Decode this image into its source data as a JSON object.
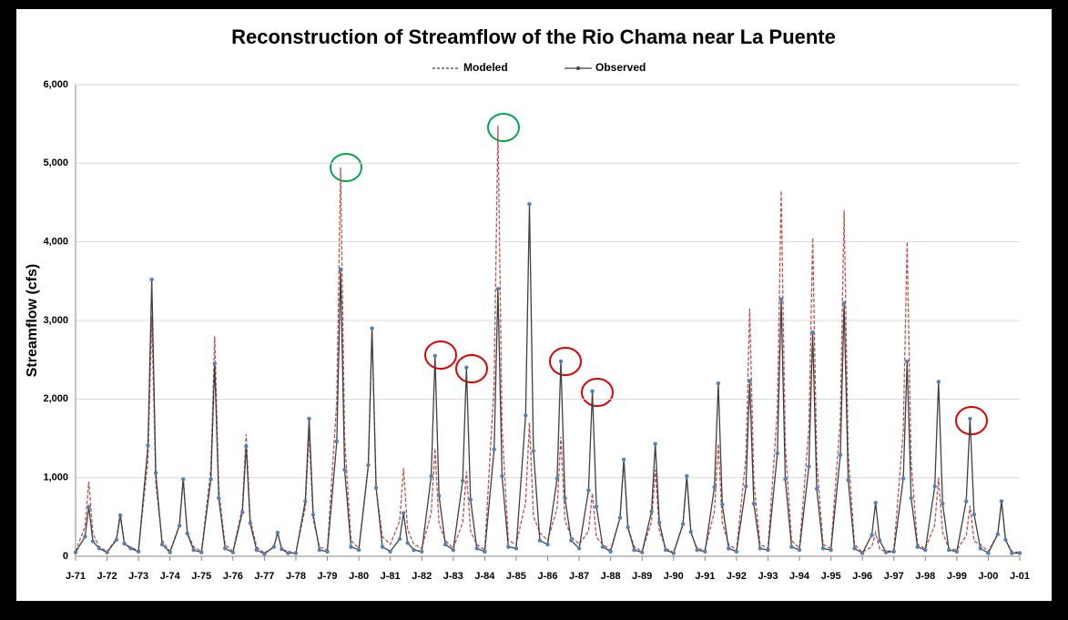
{
  "chart_data": {
    "type": "line",
    "title": "Reconstruction of Streamflow of the Rio Chama near La Puente",
    "ylabel": "Streamflow (cfs)",
    "x": [
      1971,
      1971.3,
      1971.42,
      1971.55,
      1971.75,
      1972,
      1972.3,
      1972.42,
      1972.55,
      1972.75,
      1973,
      1973.3,
      1973.42,
      1973.55,
      1973.75,
      1974,
      1974.3,
      1974.42,
      1974.55,
      1974.75,
      1975,
      1975.3,
      1975.42,
      1975.55,
      1975.75,
      1976,
      1976.3,
      1976.42,
      1976.55,
      1976.75,
      1977,
      1977.3,
      1977.42,
      1977.55,
      1977.75,
      1978,
      1978.3,
      1978.42,
      1978.55,
      1978.75,
      1979,
      1979.3,
      1979.42,
      1979.55,
      1979.75,
      1980,
      1980.3,
      1980.42,
      1980.55,
      1980.75,
      1981,
      1981.3,
      1981.42,
      1981.55,
      1981.75,
      1982,
      1982.3,
      1982.42,
      1982.55,
      1982.75,
      1983,
      1983.3,
      1983.42,
      1983.55,
      1983.75,
      1984,
      1984.3,
      1984.42,
      1984.55,
      1984.75,
      1985,
      1985.3,
      1985.42,
      1985.55,
      1985.75,
      1986,
      1986.3,
      1986.42,
      1986.55,
      1986.75,
      1987,
      1987.3,
      1987.42,
      1987.55,
      1987.75,
      1988,
      1988.3,
      1988.42,
      1988.55,
      1988.75,
      1989,
      1989.3,
      1989.42,
      1989.55,
      1989.75,
      1990,
      1990.3,
      1990.42,
      1990.55,
      1990.75,
      1991,
      1991.3,
      1991.42,
      1991.55,
      1991.75,
      1992,
      1992.3,
      1992.42,
      1992.55,
      1992.75,
      1993,
      1993.3,
      1993.42,
      1993.55,
      1993.75,
      1994,
      1994.3,
      1994.42,
      1994.55,
      1994.75,
      1995,
      1995.3,
      1995.42,
      1995.55,
      1995.75,
      1996,
      1996.3,
      1996.42,
      1996.55,
      1996.75,
      1997,
      1997.3,
      1997.42,
      1997.55,
      1997.75,
      1998,
      1998.3,
      1998.42,
      1998.55,
      1998.75,
      1999,
      1999.3,
      1999.42,
      1999.55,
      1999.75,
      2000,
      2000.3,
      2000.42,
      2000.55,
      2000.75,
      2001
    ],
    "series": [
      {
        "name": "Modeled",
        "color": "#c0504d",
        "dash": true,
        "values": [
          60,
          380,
          950,
          290,
          120,
          60,
          220,
          550,
          170,
          110,
          80,
          1220,
          3050,
          920,
          200,
          60,
          400,
          1000,
          300,
          120,
          60,
          1120,
          2800,
          840,
          150,
          60,
          620,
          1550,
          470,
          120,
          40,
          120,
          300,
          90,
          60,
          50,
          620,
          1550,
          470,
          120,
          80,
          1980,
          4950,
          1490,
          200,
          100,
          1140,
          2850,
          860,
          250,
          150,
          450,
          1120,
          340,
          150,
          100,
          550,
          1370,
          410,
          200,
          100,
          430,
          1080,
          320,
          150,
          80,
          2190,
          5480,
          1640,
          200,
          150,
          680,
          1700,
          510,
          300,
          200,
          610,
          1520,
          460,
          250,
          150,
          320,
          800,
          240,
          150,
          80,
          490,
          1230,
          370,
          120,
          60,
          440,
          1100,
          330,
          100,
          50,
          400,
          1000,
          300,
          100,
          80,
          570,
          1430,
          430,
          150,
          80,
          1260,
          3150,
          950,
          150,
          100,
          1860,
          4650,
          1400,
          200,
          100,
          1620,
          4050,
          1220,
          150,
          100,
          1760,
          4400,
          1320,
          150,
          50,
          120,
          300,
          90,
          60,
          80,
          1600,
          4000,
          1200,
          150,
          100,
          400,
          1000,
          300,
          100,
          80,
          260,
          640,
          190,
          150,
          60,
          280,
          700,
          210,
          60,
          50
        ]
      },
      {
        "name": "Observed",
        "color": "#404040",
        "marker_color": "#4f81bd",
        "dash": false,
        "values": [
          50,
          250,
          630,
          190,
          100,
          50,
          210,
          520,
          160,
          100,
          60,
          1410,
          3520,
          1060,
          150,
          50,
          390,
          980,
          290,
          80,
          50,
          980,
          2450,
          740,
          100,
          50,
          560,
          1400,
          420,
          80,
          30,
          120,
          300,
          90,
          40,
          40,
          700,
          1750,
          530,
          80,
          60,
          1460,
          3650,
          1100,
          120,
          80,
          1160,
          2900,
          870,
          120,
          60,
          220,
          550,
          170,
          80,
          60,
          1020,
          2550,
          770,
          150,
          80,
          960,
          2400,
          720,
          100,
          60,
          1360,
          3400,
          1020,
          120,
          100,
          1790,
          4480,
          1340,
          200,
          150,
          990,
          2480,
          740,
          200,
          100,
          840,
          2100,
          630,
          120,
          60,
          490,
          1230,
          370,
          80,
          50,
          570,
          1430,
          430,
          80,
          40,
          410,
          1020,
          310,
          80,
          60,
          880,
          2200,
          660,
          100,
          60,
          890,
          2230,
          670,
          100,
          80,
          1310,
          3270,
          980,
          120,
          80,
          1140,
          2850,
          860,
          100,
          80,
          1290,
          3220,
          970,
          100,
          40,
          270,
          680,
          200,
          50,
          60,
          990,
          2480,
          740,
          120,
          80,
          890,
          2220,
          670,
          80,
          60,
          700,
          1750,
          530,
          100,
          40,
          280,
          700,
          210,
          40,
          40
        ]
      }
    ],
    "xlim": [
      1971,
      2001
    ],
    "xticks": [
      {
        "value": 1971,
        "label": "J-71"
      },
      {
        "value": 1972,
        "label": "J-72"
      },
      {
        "value": 1973,
        "label": "J-73"
      },
      {
        "value": 1974,
        "label": "J-74"
      },
      {
        "value": 1975,
        "label": "J-75"
      },
      {
        "value": 1976,
        "label": "J-76"
      },
      {
        "value": 1977,
        "label": "J-77"
      },
      {
        "value": 1978,
        "label": "J-78"
      },
      {
        "value": 1979,
        "label": "J-79"
      },
      {
        "value": 1980,
        "label": "J-80"
      },
      {
        "value": 1981,
        "label": "J-81"
      },
      {
        "value": 1982,
        "label": "J-82"
      },
      {
        "value": 1983,
        "label": "J-83"
      },
      {
        "value": 1984,
        "label": "J-84"
      },
      {
        "value": 1985,
        "label": "J-85"
      },
      {
        "value": 1986,
        "label": "J-86"
      },
      {
        "value": 1987,
        "label": "J-87"
      },
      {
        "value": 1988,
        "label": "J-88"
      },
      {
        "value": 1989,
        "label": "J-89"
      },
      {
        "value": 1990,
        "label": "J-90"
      },
      {
        "value": 1991,
        "label": "J-91"
      },
      {
        "value": 1992,
        "label": "J-92"
      },
      {
        "value": 1993,
        "label": "J-93"
      },
      {
        "value": 1994,
        "label": "J-94"
      },
      {
        "value": 1995,
        "label": "J-95"
      },
      {
        "value": 1996,
        "label": "J-96"
      },
      {
        "value": 1997,
        "label": "J-97"
      },
      {
        "value": 1998,
        "label": "J-98"
      },
      {
        "value": 1999,
        "label": "J-99"
      },
      {
        "value": 2000,
        "label": "J-00"
      },
      {
        "value": 2001,
        "label": "J-01"
      }
    ],
    "ylim": [
      0,
      6000
    ],
    "yticks": [
      0,
      {
        "value": 1000,
        "label": "1,000"
      },
      {
        "value": 2000,
        "label": "2,000"
      },
      {
        "value": 3000,
        "label": "3,000"
      },
      {
        "value": 4000,
        "label": "4,000"
      },
      {
        "value": 5000,
        "label": "5,000"
      },
      {
        "value": 6000,
        "label": "6,000"
      }
    ],
    "grid": true,
    "legend": "top"
  }
}
